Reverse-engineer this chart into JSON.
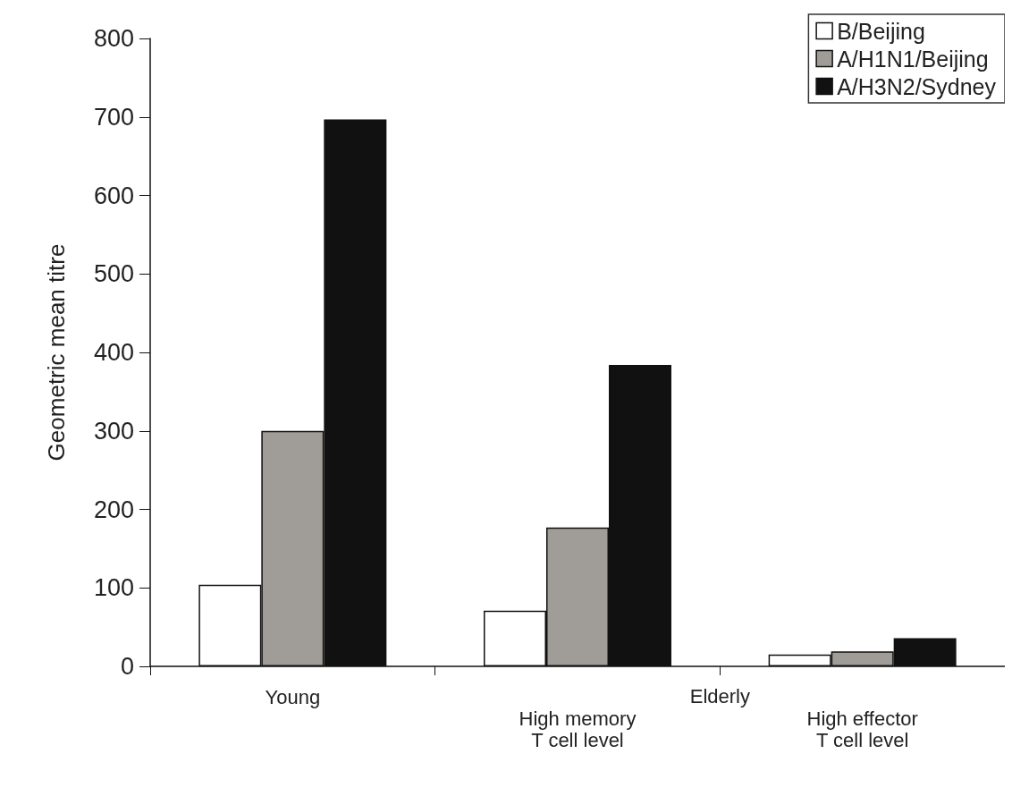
{
  "chart_data": {
    "type": "bar",
    "ylabel": "Geometric mean titre",
    "categories": [
      "Young",
      "High memory\nT cell level",
      "High effector\nT cell level"
    ],
    "series": [
      {
        "name": "B/Beijing",
        "color": "#ffffff",
        "values": [
          104,
          71,
          15
        ]
      },
      {
        "name": "A/H1N1/Beijing",
        "color": "#a09d98",
        "values": [
          300,
          177,
          19
        ]
      },
      {
        "name": "A/H3N2/Sydney",
        "color": "#111111",
        "values": [
          697,
          384,
          36
        ]
      }
    ],
    "ylim": [
      0,
      800
    ],
    "yticks": [
      0,
      100,
      200,
      300,
      400,
      500,
      600,
      700,
      800
    ],
    "grid": false,
    "legend": "top right",
    "annotations": [
      "Elderly"
    ]
  }
}
